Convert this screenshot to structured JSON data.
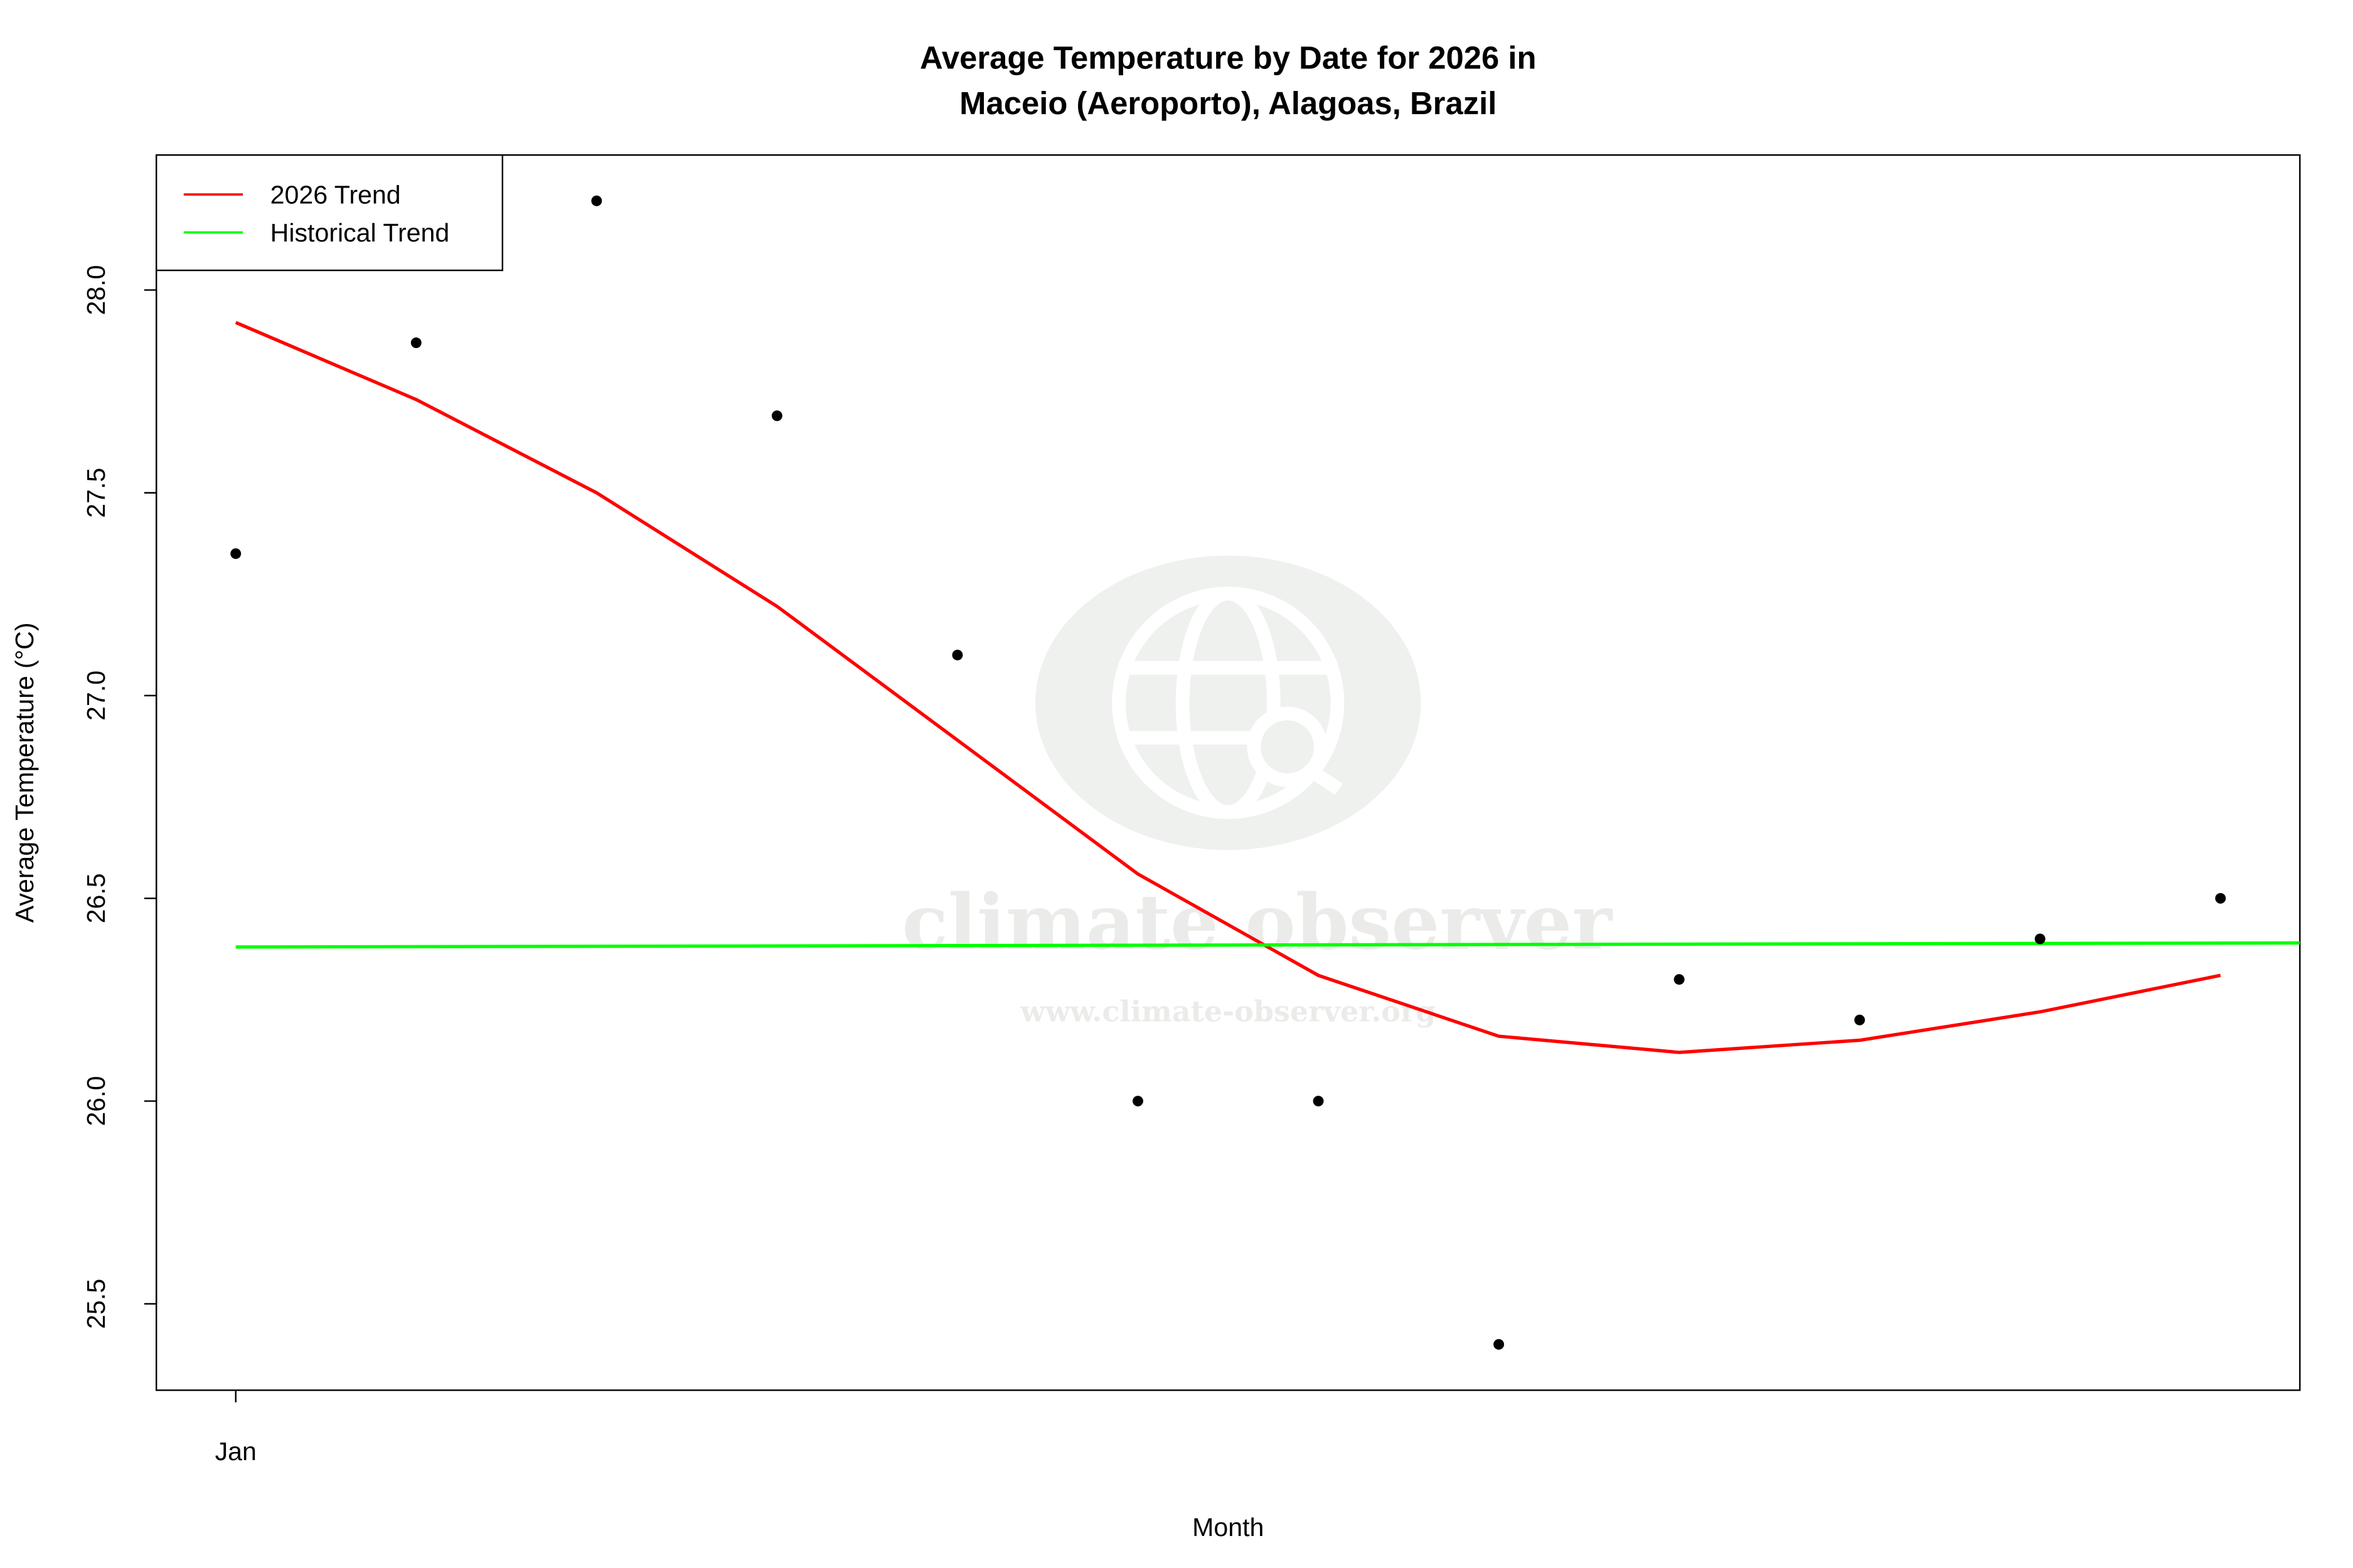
{
  "chart_data": {
    "type": "line",
    "title": [
      "Average Temperature by Date for 2026 in",
      "Maceio (Aeroporto), Alagoas, Brazil"
    ],
    "xlabel": "Month",
    "ylabel": "Average Temperature (°C)",
    "x_tick_labels": [
      {
        "x": 1,
        "label": "Jan"
      }
    ],
    "y_ticks": [
      25.5,
      26.0,
      26.5,
      27.0,
      27.5,
      28.0
    ],
    "y_tick_labels": [
      "25.5",
      "26.0",
      "26.5",
      "27.0",
      "27.5",
      "28.0"
    ],
    "xlim": [
      0.56,
      12.44
    ],
    "ylim": [
      25.287,
      28.333
    ],
    "grid": false,
    "legend": {
      "placement": "top-left",
      "entries": [
        {
          "label": "2026 Trend",
          "color": "#ff0000"
        },
        {
          "label": "Historical Trend",
          "color": "#00ff00"
        }
      ]
    },
    "points": {
      "x": [
        1,
        2,
        3,
        4,
        5,
        6,
        7,
        8,
        9,
        10,
        11,
        12
      ],
      "y": [
        27.35,
        27.87,
        28.22,
        27.69,
        27.1,
        26.0,
        26.0,
        25.4,
        26.3,
        26.2,
        26.4,
        26.5
      ],
      "color": "#000000"
    },
    "series": [
      {
        "name": "2026 Trend",
        "color": "#ff0000",
        "x": [
          1,
          2,
          3,
          4,
          5,
          6,
          7,
          8,
          9,
          10,
          11,
          12
        ],
        "y": [
          27.92,
          27.73,
          27.5,
          27.22,
          26.89,
          26.56,
          26.31,
          26.16,
          26.12,
          26.15,
          26.22,
          26.31
        ]
      },
      {
        "name": "Historical Trend",
        "color": "#00ff00",
        "x": [
          1,
          12.44
        ],
        "y": [
          26.38,
          26.39
        ]
      }
    ]
  },
  "watermark": {
    "name": "climate observer",
    "url": "www.climate-observer.org"
  }
}
